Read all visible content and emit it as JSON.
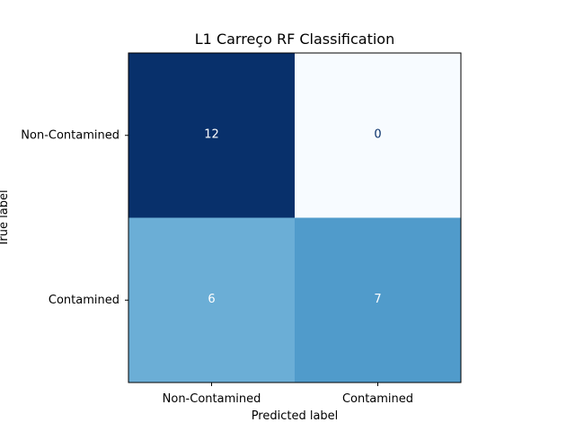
{
  "chart_data": {
    "type": "heatmap",
    "title": "L1 Carreço RF Classification",
    "xlabel": "Predicted label",
    "ylabel": "True label",
    "x_categories": [
      "Non-Contamined",
      "Contamined"
    ],
    "y_categories": [
      "Non-Contamined",
      "Contamined"
    ],
    "values": [
      [
        12,
        0
      ],
      [
        6,
        7
      ]
    ],
    "colormap": "Blues",
    "value_range": [
      0,
      12
    ],
    "colors": {
      "low": "#f7fbff",
      "high": "#08306b"
    }
  }
}
